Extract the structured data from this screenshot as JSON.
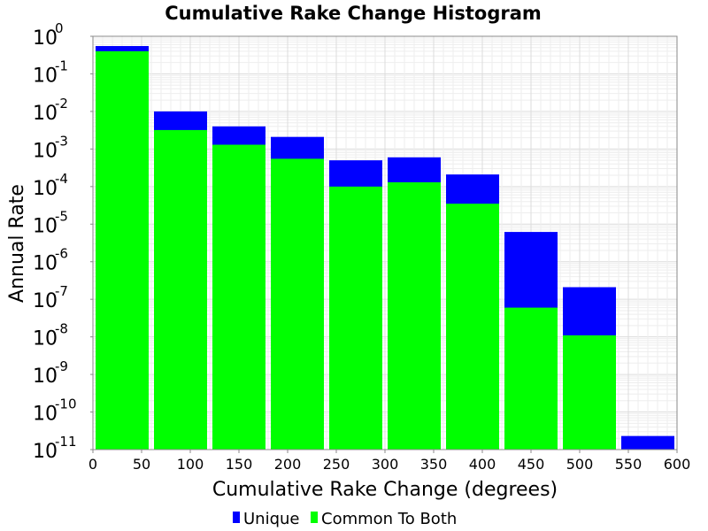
{
  "chart_data": {
    "type": "bar",
    "title": "Cumulative Rake Change Histogram",
    "xlabel": "Cumulative Rake Change (degrees)",
    "ylabel": "Annual Rate",
    "yscale": "log",
    "xlim": [
      0,
      600
    ],
    "ylim_exp": [
      -11,
      0
    ],
    "xticks": [
      0,
      50,
      100,
      150,
      200,
      250,
      300,
      350,
      400,
      450,
      500,
      550,
      600
    ],
    "yticks_exp": [
      0,
      -1,
      -2,
      -3,
      -4,
      -5,
      -6,
      -7,
      -8,
      -9,
      -10,
      -11
    ],
    "ytick_base": "10",
    "bin_width": 60,
    "bins": [
      0,
      60,
      120,
      180,
      240,
      300,
      360,
      420,
      480,
      540
    ],
    "grid": true,
    "legend_position": "bottom",
    "series": [
      {
        "name": "Unique",
        "color": "#0000ff",
        "values": [
          0.55,
          0.01,
          0.004,
          0.0021,
          0.0005,
          0.0006,
          0.00021,
          6.2e-06,
          2.1e-07,
          2.3e-11
        ]
      },
      {
        "name": "Common To Both",
        "color": "#00ff00",
        "values": [
          0.4,
          0.0032,
          0.0013,
          0.00055,
          0.0001,
          0.00013,
          3.5e-05,
          6e-08,
          1.1e-08,
          null
        ]
      }
    ]
  }
}
